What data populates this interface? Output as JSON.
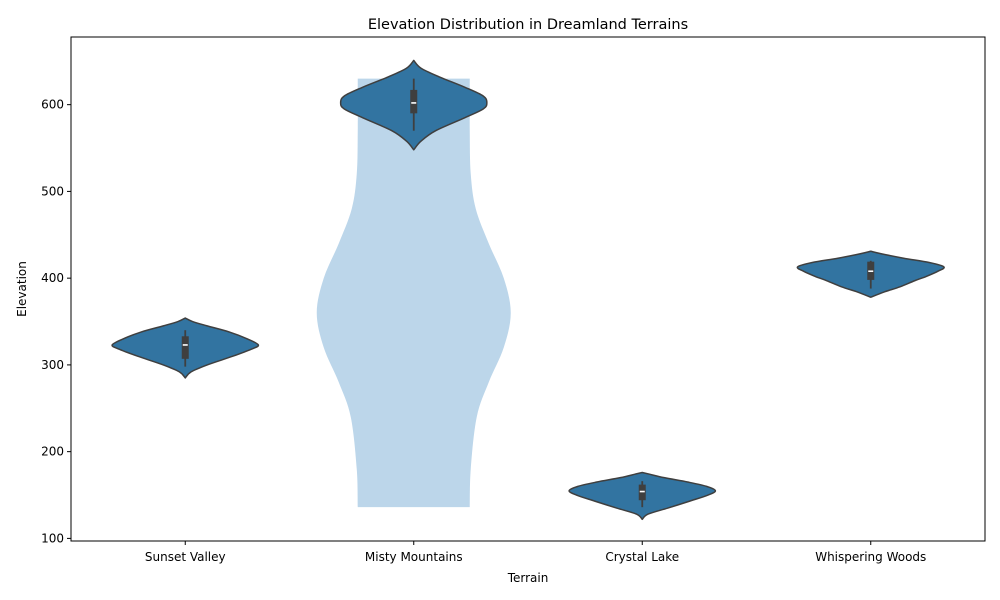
{
  "chart_data": {
    "type": "violin",
    "title": "Elevation Distribution in Dreamland Terrains",
    "xlabel": "Terrain",
    "ylabel": "Elevation",
    "categories": [
      "Sunset Valley",
      "Misty Mountains",
      "Crystal Lake",
      "Whispering Woods"
    ],
    "ylim": [
      97,
      678
    ],
    "yticks": [
      100,
      200,
      300,
      400,
      500,
      600
    ],
    "grid": false,
    "colors": {
      "violin": "#3274a1",
      "outline": "#3f3f3f",
      "box": "#3f3f3f",
      "median": "#ffffff",
      "background_violin": "#bcd6ea"
    },
    "background_violin": {
      "category": "Misty Mountains",
      "range": [
        136,
        630
      ],
      "profile": [
        [
          136,
          0.56
        ],
        [
          180,
          0.57
        ],
        [
          240,
          0.63
        ],
        [
          280,
          0.75
        ],
        [
          320,
          0.9
        ],
        [
          360,
          0.97
        ],
        [
          400,
          0.9
        ],
        [
          440,
          0.75
        ],
        [
          480,
          0.62
        ],
        [
          520,
          0.57
        ],
        [
          570,
          0.56
        ],
        [
          630,
          0.56
        ]
      ]
    },
    "violins": [
      {
        "category": "Sunset Valley",
        "profile": [
          [
            285,
            0.0
          ],
          [
            292,
            0.08
          ],
          [
            300,
            0.3
          ],
          [
            310,
            0.65
          ],
          [
            318,
            0.9
          ],
          [
            323,
            1.0
          ],
          [
            330,
            0.85
          ],
          [
            338,
            0.6
          ],
          [
            345,
            0.3
          ],
          [
            350,
            0.1
          ],
          [
            354,
            0.0
          ]
        ],
        "q1": 307,
        "median": 323,
        "q3": 333,
        "whisker_low": 298,
        "whisker_high": 340
      },
      {
        "category": "Misty Mountains",
        "profile": [
          [
            548,
            0.0
          ],
          [
            558,
            0.1
          ],
          [
            570,
            0.3
          ],
          [
            585,
            0.7
          ],
          [
            595,
            0.95
          ],
          [
            602,
            1.0
          ],
          [
            610,
            0.95
          ],
          [
            620,
            0.7
          ],
          [
            632,
            0.35
          ],
          [
            642,
            0.1
          ],
          [
            651,
            0.0
          ]
        ],
        "q1": 590,
        "median": 602,
        "q3": 617,
        "whisker_low": 570,
        "whisker_high": 630
      },
      {
        "category": "Crystal Lake",
        "profile": [
          [
            122,
            0.0
          ],
          [
            128,
            0.08
          ],
          [
            135,
            0.35
          ],
          [
            143,
            0.65
          ],
          [
            150,
            0.9
          ],
          [
            155,
            1.0
          ],
          [
            160,
            0.88
          ],
          [
            165,
            0.62
          ],
          [
            170,
            0.3
          ],
          [
            174,
            0.1
          ],
          [
            176,
            0.0
          ]
        ],
        "q1": 144,
        "median": 154,
        "q3": 162,
        "whisker_low": 136,
        "whisker_high": 166
      },
      {
        "category": "Whispering Woods",
        "profile": [
          [
            378,
            0.0
          ],
          [
            384,
            0.18
          ],
          [
            390,
            0.4
          ],
          [
            397,
            0.6
          ],
          [
            402,
            0.76
          ],
          [
            408,
            0.92
          ],
          [
            413,
            1.0
          ],
          [
            418,
            0.8
          ],
          [
            423,
            0.45
          ],
          [
            428,
            0.15
          ],
          [
            431,
            0.0
          ]
        ],
        "q1": 398,
        "median": 408,
        "q3": 419,
        "whisker_low": 388,
        "whisker_high": 420
      }
    ]
  }
}
